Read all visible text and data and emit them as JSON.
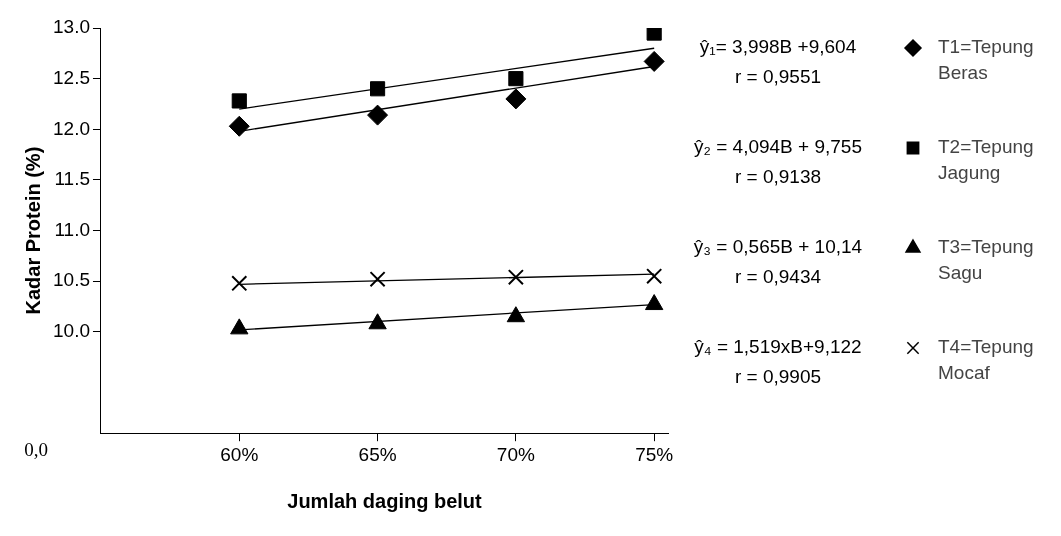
{
  "chart_data": {
    "type": "scatter",
    "xlabel": "Jumlah daging belut",
    "ylabel": "Kadar Protein (%)",
    "xlim": [
      55,
      75.5
    ],
    "xticks": [
      {
        "value": 60,
        "label": "60%"
      },
      {
        "value": 65,
        "label": "65%"
      },
      {
        "value": 70,
        "label": "70%"
      },
      {
        "value": 75,
        "label": "75%"
      }
    ],
    "ylim": [
      9.0,
      13.0
    ],
    "yticks": [
      {
        "value": 10,
        "label": "10.0"
      },
      {
        "value": 10.5,
        "label": "10.5"
      },
      {
        "value": 11,
        "label": "11.0"
      },
      {
        "value": 11.5,
        "label": "11.5"
      },
      {
        "value": 12,
        "label": "12.0"
      },
      {
        "value": 12.5,
        "label": "12.5"
      },
      {
        "value": 13,
        "label": "13.0"
      }
    ],
    "grid": false,
    "legend": "right",
    "series": [
      {
        "name": "T1=Tepung Beras",
        "color": "#000000",
        "marker": "diamond",
        "x": [
          60,
          65,
          70,
          75
        ],
        "values": [
          12.03,
          12.14,
          12.3,
          12.67
        ]
      },
      {
        "name": "T2=Tepung Jagung",
        "color": "#000000",
        "marker": "square",
        "x": [
          60,
          65,
          70,
          75
        ],
        "values": [
          12.28,
          12.4,
          12.5,
          12.95
        ]
      },
      {
        "name": "T3=Tepung Sagu",
        "color": "#000000",
        "marker": "triangle",
        "x": [
          60,
          65,
          70,
          75
        ],
        "values": [
          10.03,
          10.08,
          10.15,
          10.27
        ]
      },
      {
        "name": "T4=Tepung Mocaf",
        "color": "#000000",
        "marker": "cross",
        "x": [
          60,
          65,
          70,
          75
        ],
        "values": [
          10.48,
          10.52,
          10.54,
          10.55
        ]
      },
      {
        "type": "line",
        "color": "#000000",
        "x": [
          60,
          75
        ],
        "values": [
          11.98,
          12.62
        ]
      },
      {
        "type": "line",
        "color": "#000000",
        "x": [
          60,
          75
        ],
        "values": [
          12.2,
          12.8
        ]
      },
      {
        "type": "line",
        "color": "#000000",
        "x": [
          60,
          75
        ],
        "values": [
          10.02,
          10.27
        ]
      },
      {
        "type": "line",
        "color": "#000000",
        "x": [
          60,
          75
        ],
        "values": [
          10.47,
          10.57
        ]
      }
    ],
    "annotations": [
      "ŷ₁= 3,998B +9,604",
      "r = 0,9551",
      "ŷ₂ = 4,094B + 9,755",
      "r = 0,9138",
      "ŷ₃ = 0,565B + 10,14",
      "r = 0,9434",
      "ŷ₄ = 1,519xB+9,122",
      "r = 0,9905",
      "0,0"
    ]
  }
}
